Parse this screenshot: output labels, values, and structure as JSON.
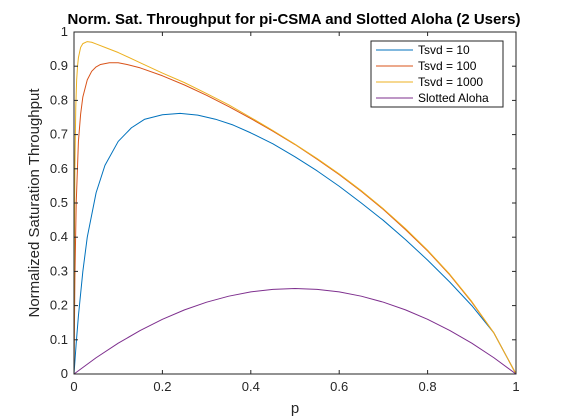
{
  "chart_data": {
    "type": "line",
    "title": "Norm. Sat. Throughput for pi-CSMA and Slotted Aloha (2 Users)",
    "xlabel": "p",
    "ylabel": "Normalized Saturation Throughput",
    "xlim": [
      0,
      1
    ],
    "ylim": [
      0,
      1
    ],
    "xticks": [
      "0",
      "0.2",
      "0.4",
      "0.6",
      "0.8",
      "1"
    ],
    "yticks": [
      "0",
      "0.1",
      "0.2",
      "0.3",
      "0.4",
      "0.5",
      "0.6",
      "0.7",
      "0.8",
      "0.9",
      "1"
    ],
    "grid": false,
    "legend_position": "top-right",
    "series": [
      {
        "name": "Tsvd = 10",
        "color": "#0072BD",
        "x": [
          0,
          0.005,
          0.01,
          0.02,
          0.03,
          0.05,
          0.07,
          0.1,
          0.13,
          0.16,
          0.2,
          0.24,
          0.28,
          0.32,
          0.36,
          0.4,
          0.45,
          0.5,
          0.55,
          0.6,
          0.65,
          0.7,
          0.75,
          0.8,
          0.85,
          0.9,
          0.95,
          1.0
        ],
        "y": [
          0,
          0.09,
          0.17,
          0.3,
          0.4,
          0.53,
          0.61,
          0.68,
          0.72,
          0.745,
          0.758,
          0.762,
          0.757,
          0.745,
          0.728,
          0.705,
          0.673,
          0.635,
          0.594,
          0.549,
          0.5,
          0.449,
          0.393,
          0.333,
          0.269,
          0.2,
          0.12,
          0
        ]
      },
      {
        "name": "Tsvd = 100",
        "color": "#D95319",
        "x": [
          0,
          0.002,
          0.005,
          0.01,
          0.015,
          0.02,
          0.03,
          0.04,
          0.05,
          0.06,
          0.08,
          0.1,
          0.12,
          0.15,
          0.2,
          0.25,
          0.3,
          0.35,
          0.4,
          0.45,
          0.5,
          0.55,
          0.6,
          0.65,
          0.7,
          0.75,
          0.8,
          0.85,
          0.9,
          0.95,
          1.0
        ],
        "y": [
          0,
          0.28,
          0.5,
          0.68,
          0.76,
          0.81,
          0.86,
          0.885,
          0.898,
          0.905,
          0.91,
          0.91,
          0.905,
          0.895,
          0.872,
          0.845,
          0.815,
          0.782,
          0.747,
          0.71,
          0.671,
          0.628,
          0.583,
          0.534,
          0.481,
          0.422,
          0.36,
          0.29,
          0.21,
          0.12,
          0
        ]
      },
      {
        "name": "Tsvd = 1000",
        "color": "#EDB120",
        "x": [
          0,
          0.001,
          0.002,
          0.004,
          0.006,
          0.008,
          0.01,
          0.015,
          0.02,
          0.03,
          0.04,
          0.05,
          0.07,
          0.1,
          0.15,
          0.2,
          0.25,
          0.3,
          0.35,
          0.4,
          0.45,
          0.5,
          0.55,
          0.6,
          0.65,
          0.7,
          0.75,
          0.8,
          0.85,
          0.9,
          0.95,
          1.0
        ],
        "y": [
          0,
          0.4,
          0.6,
          0.78,
          0.86,
          0.9,
          0.925,
          0.955,
          0.966,
          0.972,
          0.97,
          0.965,
          0.955,
          0.94,
          0.91,
          0.88,
          0.852,
          0.82,
          0.787,
          0.75,
          0.712,
          0.672,
          0.63,
          0.585,
          0.536,
          0.483,
          0.425,
          0.362,
          0.292,
          0.212,
          0.12,
          0
        ]
      },
      {
        "name": "Slotted Aloha",
        "color": "#7E2F8E",
        "x": [
          0,
          0.05,
          0.1,
          0.15,
          0.2,
          0.25,
          0.3,
          0.35,
          0.4,
          0.45,
          0.5,
          0.55,
          0.6,
          0.65,
          0.7,
          0.75,
          0.8,
          0.85,
          0.9,
          0.95,
          1.0
        ],
        "y": [
          0,
          0.0475,
          0.09,
          0.1275,
          0.16,
          0.1875,
          0.21,
          0.2275,
          0.24,
          0.2475,
          0.25,
          0.2475,
          0.24,
          0.2275,
          0.21,
          0.1875,
          0.16,
          0.1275,
          0.09,
          0.0475,
          0
        ]
      }
    ]
  }
}
